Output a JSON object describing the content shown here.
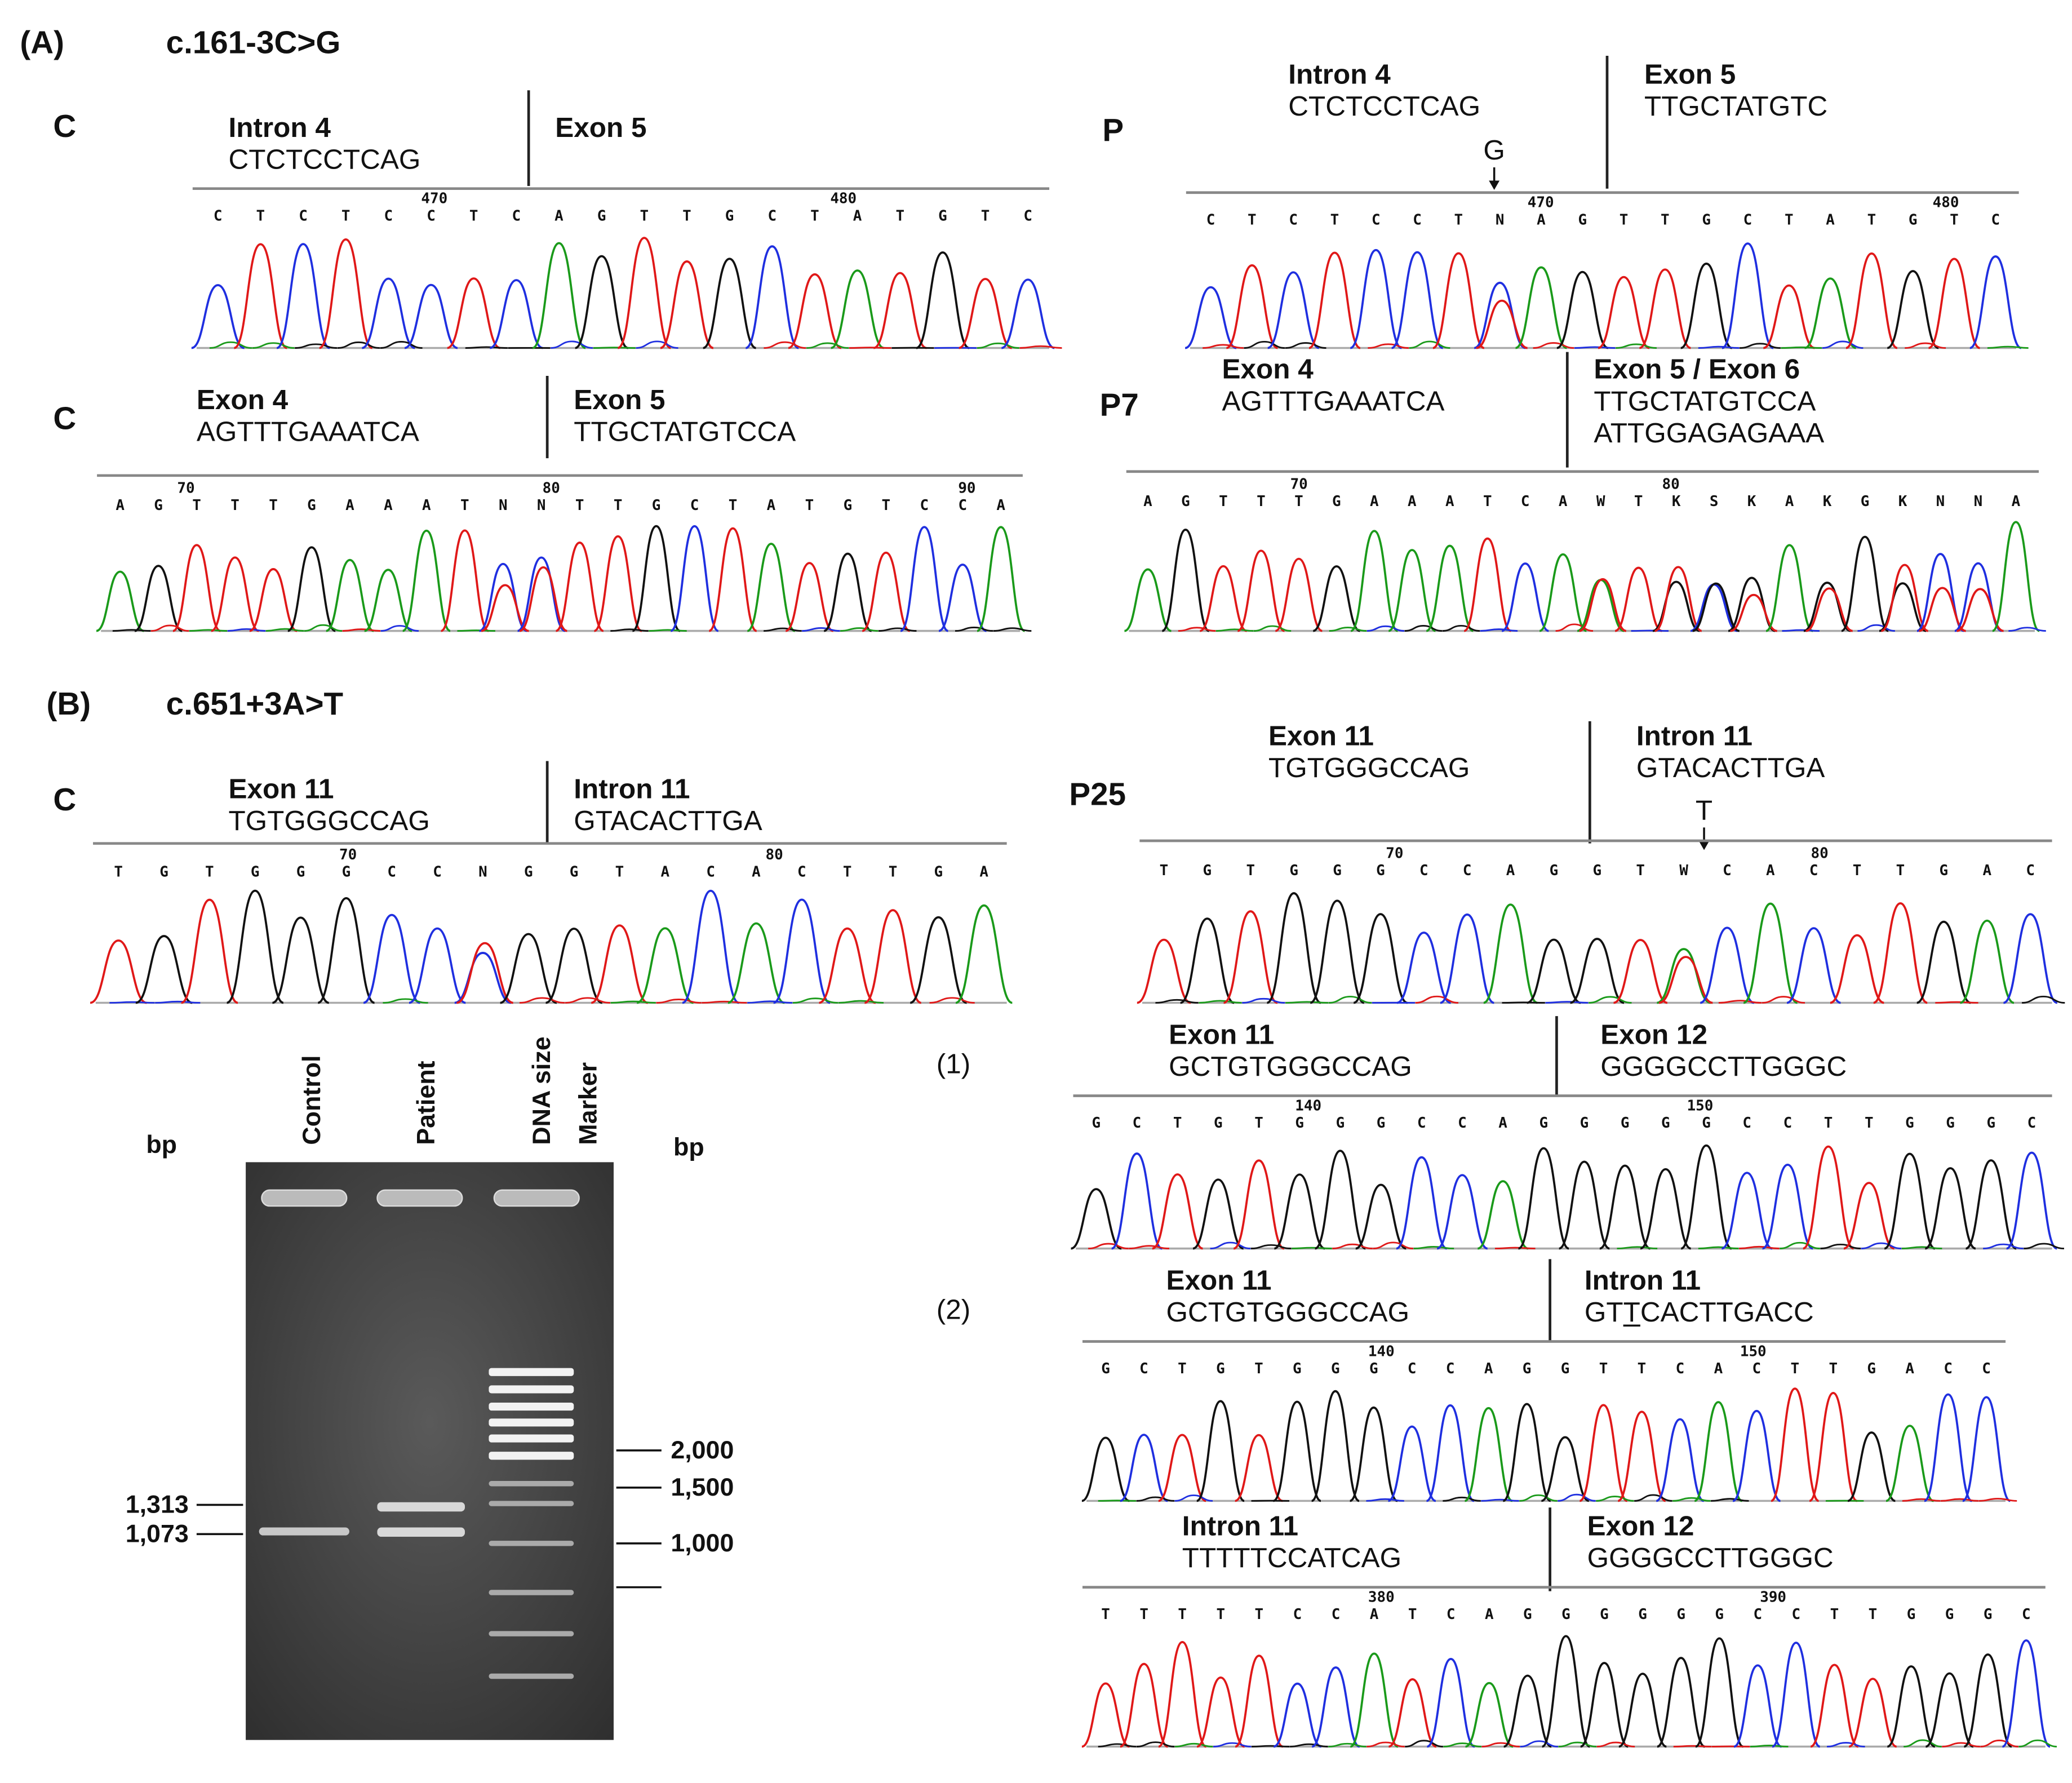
{
  "section_a": {
    "label": "(A)",
    "mutation": "c.161-3C>G"
  },
  "section_b": {
    "label": "(B)",
    "mutation": "c.651+3A>T"
  },
  "panels": [
    {
      "sample": "C",
      "left": {
        "region": "Intron 4",
        "seqs": [
          "CTCTCCTCAG"
        ]
      },
      "right": {
        "region": "Exon 5",
        "seqs": []
      },
      "bases": "CTCTCCTCAGTTGCTATGTC",
      "positions": [
        470,
        480
      ]
    },
    {
      "sample": "C",
      "left": {
        "region": "Exon 4",
        "seqs": [
          "AGTTTGAAATCA"
        ]
      },
      "right": {
        "region": "Exon 5",
        "seqs": [
          "TTGCTATGTCCA"
        ]
      },
      "bases": "AGTTTGAAATNNTTGCTATGTCCA",
      "positions": [
        70,
        80,
        90
      ]
    },
    {
      "sample": "P",
      "left": {
        "region": "Intron 4",
        "seqs": [
          "CTCTCCTCAG"
        ],
        "note": "G"
      },
      "right": {
        "region": "Exon 5",
        "seqs": [
          "TTGCTATGTC"
        ]
      },
      "bases": "CTCTCCTNAGTTGCTATGTC",
      "positions": [
        470,
        480
      ]
    },
    {
      "sample": "P7",
      "left": {
        "region": "Exon 4",
        "seqs": [
          "AGTTTGAAATCA"
        ]
      },
      "right": {
        "region": "Exon 5 / Exon 6",
        "seqs": [
          "TTGCTATGTCCA",
          "ATTGGAGAGAAA"
        ]
      },
      "bases": "AGTTTGAAATCAWTKSKAKGKNNA",
      "positions": [
        70,
        80
      ]
    },
    {
      "sample": "C",
      "left": {
        "region": "Exon 11",
        "seqs": [
          "TGTGGGCCAG"
        ]
      },
      "right": {
        "region": "Intron 11",
        "seqs": [
          "GTACACTTGA"
        ]
      },
      "bases": "TGTGGGCCNGGTACACTTGA",
      "positions": [
        70,
        80
      ]
    },
    {
      "sample": "P25",
      "left": {
        "region": "Exon 11",
        "seqs": [
          "TGTGGGCCAG"
        ]
      },
      "right": {
        "region": "Intron 11",
        "seqs": [
          "GTACACTTGA"
        ],
        "note": "T"
      },
      "bases": "TGTGGGCCAGGTWCACTTGAC",
      "positions": [
        70,
        80
      ]
    },
    {
      "tag": "(1)",
      "left": {
        "region": "Exon 11",
        "seqs": [
          "GCTGTGGGCCAG"
        ]
      },
      "right": {
        "region": "Exon 12",
        "seqs": [
          "GGGGCCTTGGGC"
        ]
      },
      "bases": "GCTGTGGGCCAGGGGGCCTTGGGC",
      "positions": [
        140,
        150
      ]
    },
    {
      "tag": "(2)",
      "left": {
        "region": "Exon 11",
        "seqs": [
          "GCTGTGGGCCAG"
        ]
      },
      "right": {
        "region": "Intron 11",
        "seqs": [
          "GTTCACTTGACC"
        ]
      },
      "bases": "GCTGTGGGCCAGGTTCACTTGACC",
      "positions": [
        140,
        150
      ]
    },
    {
      "left": {
        "region": "Intron 11",
        "seqs": [
          "TTTTTCCATCAG"
        ]
      },
      "right": {
        "region": "Exon 12",
        "seqs": [
          "GGGGCCTTGGGC"
        ]
      },
      "bases": "TTTTTCCATCAGGGGGGCCTTGGGC",
      "positions": [
        380,
        390
      ]
    }
  ],
  "gel": {
    "unit_left": "bp",
    "unit_right": "bp",
    "lanes": [
      [
        "Control"
      ],
      [
        "Patient"
      ],
      [
        "DNA size",
        "Marker"
      ]
    ],
    "left_sizes": [
      "1,313",
      "1,073"
    ],
    "right_sizes": [
      "2,000",
      "1,500",
      "1,000"
    ]
  }
}
